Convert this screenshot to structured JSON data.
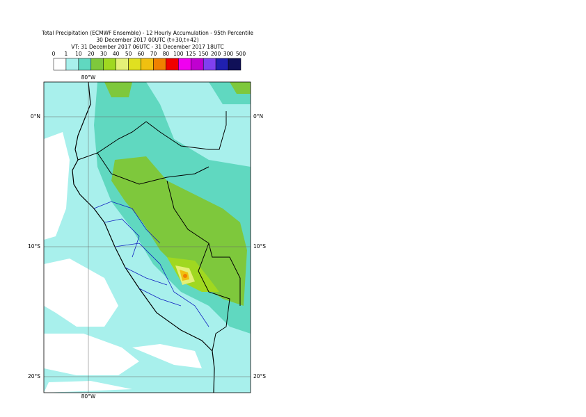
{
  "header": {
    "title": "Total Precipitation (ECMWF Ensemble) - 12 Hourly Accumulation - 95th Percentile",
    "base_time": "30 December 2017 00UTC (t+30,t+42)",
    "valid_time": "VT: 31 December 2017 06UTC - 31 December 2017 18UTC"
  },
  "legend": {
    "levels": [
      0,
      1,
      10,
      20,
      30,
      40,
      50,
      60,
      70,
      80,
      100,
      125,
      150,
      200,
      300,
      500
    ],
    "colors": [
      "#ffffff",
      "#a8f0ec",
      "#60d8c0",
      "#7ec83c",
      "#a0d820",
      "#e4f078",
      "#e0e020",
      "#f0c010",
      "#f08000",
      "#f00000",
      "#f000f0",
      "#c000d0",
      "#8040f0",
      "#2020b0",
      "#101058"
    ]
  },
  "map": {
    "lon_label": "80°W",
    "lat_labels": [
      "0°N",
      "10°S",
      "20°S"
    ]
  }
}
